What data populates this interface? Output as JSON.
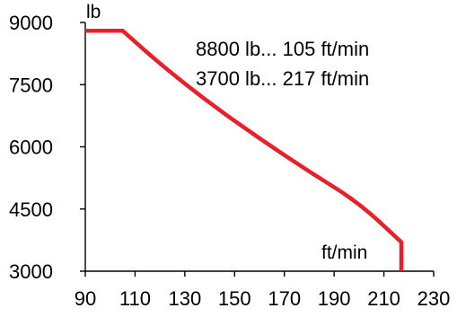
{
  "chart_data": {
    "type": "line",
    "y_unit_label": "lb",
    "x_unit_label": "ft/min",
    "annotations": [
      "8800 lb... 105 ft/min",
      "3700 lb... 217 ft/min"
    ],
    "xlim": [
      90,
      230
    ],
    "ylim": [
      3000,
      9000
    ],
    "x_ticks": [
      "90",
      "110",
      "130",
      "150",
      "170",
      "190",
      "210",
      "230"
    ],
    "y_ticks": [
      "9000",
      "7500",
      "6000",
      "4500",
      "3000"
    ],
    "grid": false,
    "legend": "none",
    "series": [
      {
        "color": "#e8202a",
        "points": [
          [
            90,
            8800
          ],
          [
            105,
            8800
          ],
          [
            120,
            8000
          ],
          [
            140,
            7050
          ],
          [
            160,
            6200
          ],
          [
            180,
            5400
          ],
          [
            200,
            4650
          ],
          [
            217,
            3700
          ],
          [
            217,
            3000
          ]
        ]
      }
    ]
  }
}
